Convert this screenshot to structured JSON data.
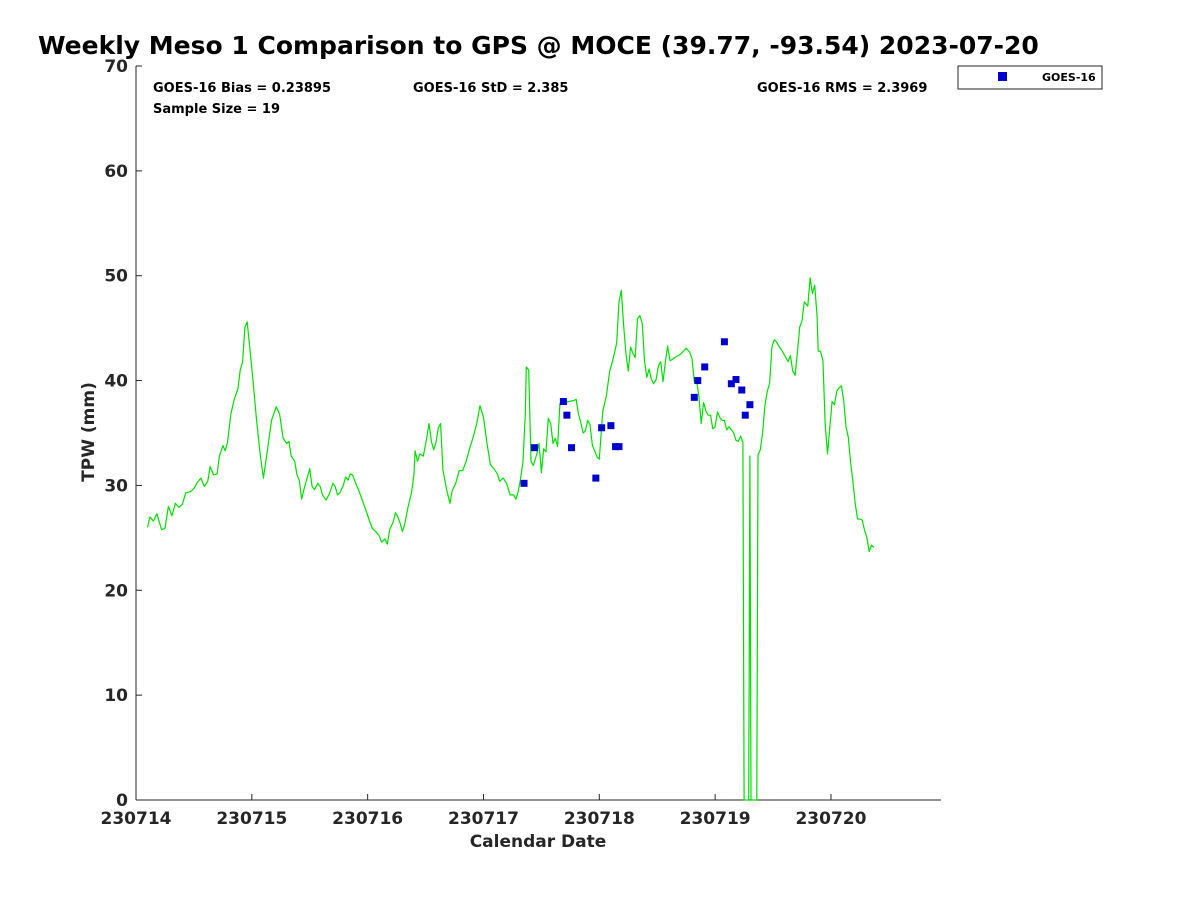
{
  "chart_data": {
    "type": "scatter",
    "title": "Weekly Meso 1 Comparison to GPS @ MOCE (39.77, -93.54) 2023-07-20",
    "xlabel": "Calendar Date",
    "ylabel": "TPW (mm)",
    "xlim": [
      0,
      6.95
    ],
    "ylim": [
      0,
      70
    ],
    "x_ticks": [
      {
        "value": 0,
        "label": "230714"
      },
      {
        "value": 1,
        "label": "230715"
      },
      {
        "value": 2,
        "label": "230716"
      },
      {
        "value": 3,
        "label": "230717"
      },
      {
        "value": 4,
        "label": "230718"
      },
      {
        "value": 5,
        "label": "230719"
      },
      {
        "value": 6,
        "label": "230720"
      }
    ],
    "y_ticks": [
      0,
      10,
      20,
      30,
      40,
      50,
      60,
      70
    ],
    "x_units": "days after 230714",
    "legend": {
      "position": "outside-top-right",
      "entries": [
        "GOES-16"
      ]
    },
    "stats": {
      "bias": "GOES-16 Bias = 0.23895",
      "std": "GOES-16 StD = 2.385",
      "rms": "GOES-16 RMS = 2.3969",
      "sample": "Sample Size = 19"
    },
    "colors": {
      "gps_line": "#00dd00",
      "goes_markers": "#0000cc"
    },
    "series": [
      {
        "type": "line",
        "color": "#00dd00",
        "points": [
          [
            0.1,
            26.0
          ],
          [
            0.12,
            27.0
          ],
          [
            0.15,
            26.6
          ],
          [
            0.18,
            27.3
          ],
          [
            0.22,
            25.8
          ],
          [
            0.25,
            25.9
          ],
          [
            0.28,
            28.0
          ],
          [
            0.31,
            27.1
          ],
          [
            0.34,
            28.3
          ],
          [
            0.37,
            27.9
          ],
          [
            0.4,
            28.2
          ],
          [
            0.43,
            29.3
          ],
          [
            0.47,
            29.4
          ],
          [
            0.5,
            29.7
          ],
          [
            0.53,
            30.3
          ],
          [
            0.56,
            30.7
          ],
          [
            0.59,
            29.9
          ],
          [
            0.62,
            30.4
          ],
          [
            0.64,
            31.8
          ],
          [
            0.67,
            31.0
          ],
          [
            0.7,
            31.1
          ],
          [
            0.72,
            32.8
          ],
          [
            0.75,
            33.8
          ],
          [
            0.77,
            33.3
          ],
          [
            0.79,
            34.1
          ],
          [
            0.82,
            36.9
          ],
          [
            0.85,
            38.3
          ],
          [
            0.88,
            39.2
          ],
          [
            0.9,
            41.0
          ],
          [
            0.92,
            41.8
          ],
          [
            0.94,
            45.1
          ],
          [
            0.96,
            45.6
          ],
          [
            0.98,
            43.4
          ],
          [
            1.01,
            40.0
          ],
          [
            1.04,
            36.3
          ],
          [
            1.07,
            33.2
          ],
          [
            1.1,
            30.7
          ],
          [
            1.13,
            33.0
          ],
          [
            1.17,
            36.2
          ],
          [
            1.21,
            37.5
          ],
          [
            1.24,
            36.8
          ],
          [
            1.27,
            34.5
          ],
          [
            1.3,
            34.0
          ],
          [
            1.32,
            34.2
          ],
          [
            1.34,
            32.8
          ],
          [
            1.37,
            32.3
          ],
          [
            1.39,
            31.0
          ],
          [
            1.41,
            30.5
          ],
          [
            1.43,
            28.7
          ],
          [
            1.45,
            29.6
          ],
          [
            1.48,
            30.8
          ],
          [
            1.5,
            31.6
          ],
          [
            1.52,
            29.9
          ],
          [
            1.54,
            29.6
          ],
          [
            1.57,
            30.2
          ],
          [
            1.59,
            29.9
          ],
          [
            1.61,
            29.1
          ],
          [
            1.64,
            28.6
          ],
          [
            1.67,
            29.2
          ],
          [
            1.7,
            30.2
          ],
          [
            1.72,
            29.9
          ],
          [
            1.74,
            29.1
          ],
          [
            1.76,
            29.3
          ],
          [
            1.79,
            30.0
          ],
          [
            1.81,
            30.8
          ],
          [
            1.83,
            30.5
          ],
          [
            1.85,
            31.1
          ],
          [
            1.87,
            31.0
          ],
          [
            1.89,
            30.4
          ],
          [
            1.92,
            29.6
          ],
          [
            1.95,
            28.7
          ],
          [
            1.98,
            27.8
          ],
          [
            2.01,
            26.8
          ],
          [
            2.04,
            25.9
          ],
          [
            2.07,
            25.6
          ],
          [
            2.1,
            25.2
          ],
          [
            2.12,
            24.6
          ],
          [
            2.15,
            24.9
          ],
          [
            2.17,
            24.4
          ],
          [
            2.19,
            25.8
          ],
          [
            2.22,
            26.5
          ],
          [
            2.24,
            27.4
          ],
          [
            2.26,
            27.0
          ],
          [
            2.28,
            26.4
          ],
          [
            2.3,
            25.6
          ],
          [
            2.32,
            26.3
          ],
          [
            2.35,
            28.0
          ],
          [
            2.38,
            29.4
          ],
          [
            2.4,
            31.1
          ],
          [
            2.41,
            33.3
          ],
          [
            2.43,
            32.3
          ],
          [
            2.45,
            33.0
          ],
          [
            2.48,
            32.8
          ],
          [
            2.51,
            34.5
          ],
          [
            2.53,
            35.9
          ],
          [
            2.55,
            34.2
          ],
          [
            2.57,
            33.4
          ],
          [
            2.59,
            34.1
          ],
          [
            2.61,
            35.5
          ],
          [
            2.63,
            35.9
          ],
          [
            2.65,
            31.5
          ],
          [
            2.68,
            29.7
          ],
          [
            2.71,
            28.3
          ],
          [
            2.73,
            29.5
          ],
          [
            2.76,
            30.2
          ],
          [
            2.79,
            31.4
          ],
          [
            2.82,
            31.4
          ],
          [
            2.85,
            32.3
          ],
          [
            2.88,
            33.5
          ],
          [
            2.91,
            34.6
          ],
          [
            2.94,
            35.8
          ],
          [
            2.97,
            37.6
          ],
          [
            3.0,
            36.5
          ],
          [
            3.03,
            34.0
          ],
          [
            3.06,
            32.0
          ],
          [
            3.09,
            31.6
          ],
          [
            3.12,
            31.1
          ],
          [
            3.14,
            30.4
          ],
          [
            3.17,
            30.7
          ],
          [
            3.2,
            30.2
          ],
          [
            3.23,
            29.1
          ],
          [
            3.26,
            29.1
          ],
          [
            3.28,
            28.7
          ],
          [
            3.3,
            29.4
          ],
          [
            3.32,
            30.6
          ],
          [
            3.34,
            32.2
          ],
          [
            3.36,
            36.5
          ],
          [
            3.37,
            41.3
          ],
          [
            3.39,
            41.0
          ],
          [
            3.41,
            32.3
          ],
          [
            3.43,
            31.9
          ],
          [
            3.46,
            33.0
          ],
          [
            3.48,
            34.0
          ],
          [
            3.5,
            31.2
          ],
          [
            3.52,
            33.5
          ],
          [
            3.54,
            33.2
          ],
          [
            3.56,
            36.4
          ],
          [
            3.58,
            35.9
          ],
          [
            3.6,
            34.0
          ],
          [
            3.62,
            34.5
          ],
          [
            3.64,
            33.7
          ],
          [
            3.66,
            37.8
          ],
          [
            3.7,
            37.9
          ],
          [
            3.74,
            38.0
          ],
          [
            3.78,
            38.1
          ],
          [
            3.8,
            38.2
          ],
          [
            3.82,
            36.8
          ],
          [
            3.84,
            36.0
          ],
          [
            3.86,
            35.0
          ],
          [
            3.88,
            35.2
          ],
          [
            3.9,
            36.2
          ],
          [
            3.92,
            35.8
          ],
          [
            3.94,
            33.8
          ],
          [
            3.96,
            33.3
          ],
          [
            3.98,
            32.7
          ],
          [
            4.0,
            32.5
          ],
          [
            4.03,
            37.1
          ],
          [
            4.06,
            38.5
          ],
          [
            4.09,
            40.9
          ],
          [
            4.11,
            41.7
          ],
          [
            4.13,
            42.6
          ],
          [
            4.15,
            43.6
          ],
          [
            4.17,
            47.5
          ],
          [
            4.19,
            48.6
          ],
          [
            4.21,
            45.3
          ],
          [
            4.23,
            42.6
          ],
          [
            4.25,
            40.9
          ],
          [
            4.27,
            43.2
          ],
          [
            4.29,
            42.6
          ],
          [
            4.31,
            42.2
          ],
          [
            4.33,
            45.9
          ],
          [
            4.35,
            46.2
          ],
          [
            4.37,
            45.5
          ],
          [
            4.39,
            41.9
          ],
          [
            4.41,
            40.3
          ],
          [
            4.43,
            41.1
          ],
          [
            4.45,
            40.1
          ],
          [
            4.47,
            39.7
          ],
          [
            4.49,
            40.1
          ],
          [
            4.51,
            41.4
          ],
          [
            4.53,
            41.8
          ],
          [
            4.55,
            39.9
          ],
          [
            4.57,
            41.7
          ],
          [
            4.59,
            43.3
          ],
          [
            4.61,
            41.9
          ],
          [
            4.63,
            42.0
          ],
          [
            4.65,
            42.2
          ],
          [
            4.7,
            42.5
          ],
          [
            4.75,
            43.1
          ],
          [
            4.78,
            42.7
          ],
          [
            4.8,
            42.1
          ],
          [
            4.82,
            39.9
          ],
          [
            4.84,
            40.0
          ],
          [
            4.86,
            38.5
          ],
          [
            4.88,
            35.9
          ],
          [
            4.9,
            37.9
          ],
          [
            4.92,
            37.1
          ],
          [
            4.94,
            36.7
          ],
          [
            4.96,
            36.7
          ],
          [
            4.98,
            35.4
          ],
          [
            5.0,
            35.6
          ],
          [
            5.02,
            37.0
          ],
          [
            5.04,
            36.5
          ],
          [
            5.06,
            36.2
          ],
          [
            5.08,
            36.2
          ],
          [
            5.1,
            35.3
          ],
          [
            5.12,
            35.6
          ],
          [
            5.14,
            35.3
          ],
          [
            5.16,
            35.0
          ],
          [
            5.18,
            34.3
          ],
          [
            5.2,
            34.2
          ],
          [
            5.22,
            34.7
          ],
          [
            5.24,
            34.1
          ],
          [
            5.25,
            0
          ],
          [
            5.29,
            0
          ],
          [
            5.3,
            32.8
          ],
          [
            5.31,
            0
          ],
          [
            5.36,
            0
          ],
          [
            5.37,
            32.9
          ],
          [
            5.39,
            33.4
          ],
          [
            5.41,
            35.0
          ],
          [
            5.43,
            37.6
          ],
          [
            5.45,
            39.0
          ],
          [
            5.47,
            39.7
          ],
          [
            5.49,
            43.2
          ],
          [
            5.51,
            43.9
          ],
          [
            5.53,
            43.7
          ],
          [
            5.55,
            43.3
          ],
          [
            5.58,
            42.8
          ],
          [
            5.61,
            42.2
          ],
          [
            5.63,
            41.8
          ],
          [
            5.65,
            42.4
          ],
          [
            5.67,
            40.9
          ],
          [
            5.69,
            40.5
          ],
          [
            5.71,
            42.7
          ],
          [
            5.73,
            45.1
          ],
          [
            5.75,
            45.7
          ],
          [
            5.77,
            47.5
          ],
          [
            5.8,
            47.1
          ],
          [
            5.82,
            49.8
          ],
          [
            5.84,
            48.3
          ],
          [
            5.86,
            49.1
          ],
          [
            5.88,
            46.1
          ],
          [
            5.89,
            42.8
          ],
          [
            5.91,
            42.8
          ],
          [
            5.93,
            41.9
          ],
          [
            5.95,
            35.8
          ],
          [
            5.97,
            33.0
          ],
          [
            5.99,
            35.5
          ],
          [
            6.01,
            38.0
          ],
          [
            6.03,
            37.7
          ],
          [
            6.05,
            39.0
          ],
          [
            6.07,
            39.3
          ],
          [
            6.09,
            39.5
          ],
          [
            6.11,
            38.1
          ],
          [
            6.13,
            35.6
          ],
          [
            6.15,
            34.6
          ],
          [
            6.17,
            32.1
          ],
          [
            6.19,
            30.3
          ],
          [
            6.21,
            28.2
          ],
          [
            6.23,
            26.8
          ],
          [
            6.25,
            26.8
          ],
          [
            6.27,
            26.7
          ],
          [
            6.29,
            25.7
          ],
          [
            6.31,
            25.0
          ],
          [
            6.33,
            23.7
          ],
          [
            6.35,
            24.3
          ],
          [
            6.37,
            24.1
          ]
        ]
      },
      {
        "name": "GOES-16",
        "type": "scatter",
        "color": "#0000cc",
        "points": [
          [
            3.35,
            30.2
          ],
          [
            3.44,
            33.6
          ],
          [
            3.69,
            38.0
          ],
          [
            3.72,
            36.7
          ],
          [
            3.76,
            33.6
          ],
          [
            3.97,
            30.7
          ],
          [
            4.02,
            35.5
          ],
          [
            4.1,
            35.7
          ],
          [
            4.14,
            33.7
          ],
          [
            4.17,
            33.7
          ],
          [
            4.82,
            38.4
          ],
          [
            4.85,
            40.0
          ],
          [
            4.91,
            41.3
          ],
          [
            5.08,
            43.7
          ],
          [
            5.14,
            39.7
          ],
          [
            5.18,
            40.1
          ],
          [
            5.23,
            39.1
          ],
          [
            5.26,
            36.7
          ],
          [
            5.3,
            37.7
          ]
        ]
      }
    ]
  }
}
